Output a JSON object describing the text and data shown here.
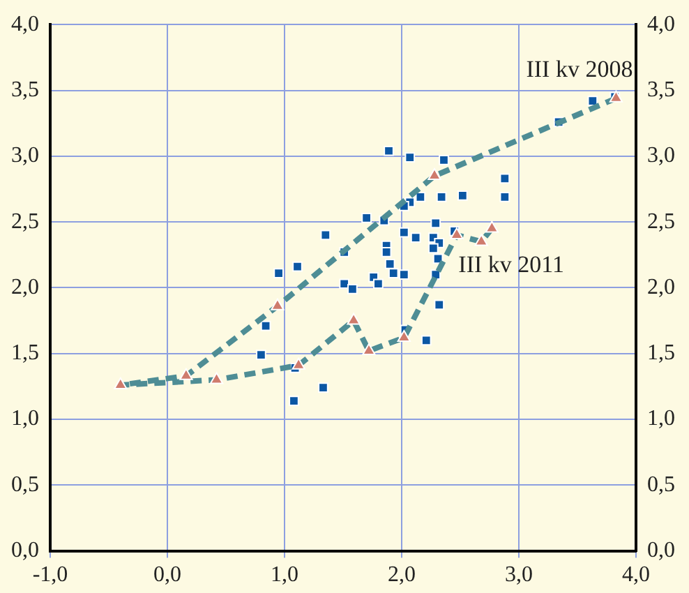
{
  "chart_data": {
    "type": "scatter",
    "series": [
      {
        "color": "#0b57a4",
        "marker": "square",
        "x": [
          1.89,
          2.07,
          2.36,
          2.88,
          2.88,
          2.52,
          2.34,
          2.16,
          2.07,
          2.02,
          1.7,
          1.85,
          2.29,
          2.45,
          2.02,
          2.12,
          2.27,
          2.32,
          2.27,
          1.87,
          1.87,
          1.51,
          1.35,
          2.31,
          1.9,
          1.11,
          0.95,
          1.93,
          2.02,
          2.29,
          1.76,
          1.8,
          1.51,
          1.58,
          2.32,
          0.84,
          2.03,
          2.21,
          0.8,
          1.09,
          1.33,
          1.08,
          3.34,
          3.63,
          3.82
        ],
        "values": [
          3.04,
          2.99,
          2.97,
          2.83,
          2.69,
          2.7,
          2.69,
          2.69,
          2.65,
          2.62,
          2.53,
          2.51,
          2.49,
          2.43,
          2.42,
          2.38,
          2.38,
          2.34,
          2.3,
          2.32,
          2.27,
          2.27,
          2.4,
          2.22,
          2.18,
          2.16,
          2.11,
          2.11,
          2.1,
          2.1,
          2.08,
          2.03,
          2.03,
          1.99,
          1.87,
          1.71,
          1.68,
          1.6,
          1.49,
          1.39,
          1.24,
          1.14,
          3.26,
          3.42,
          3.45
        ]
      },
      {
        "type": "line",
        "color": "#4e8d95",
        "marker": "triangle",
        "line_style": "dashed",
        "x": [
          3.83,
          2.28,
          0.94,
          0.16,
          -0.4,
          0.42,
          1.12,
          1.59,
          1.72,
          2.02,
          2.47,
          2.68,
          2.77
        ],
        "values": [
          3.44,
          2.85,
          1.86,
          1.33,
          1.26,
          1.3,
          1.41,
          1.75,
          1.52,
          1.62,
          2.4,
          2.35,
          2.45
        ]
      }
    ],
    "annotations": [
      {
        "text": "III kv 2008",
        "x": 3.83,
        "y": 3.44
      },
      {
        "text": "III kv 2011",
        "x": 2.77,
        "y": 2.45
      }
    ],
    "xlim": [
      -1,
      4
    ],
    "xticks": [
      {
        "value": -1,
        "label": "-1,0"
      },
      {
        "value": 0,
        "label": "0,0"
      },
      {
        "value": 1,
        "label": "1,0"
      },
      {
        "value": 2,
        "label": "2,0"
      },
      {
        "value": 3,
        "label": "3,0"
      },
      {
        "value": 4,
        "label": "4,0"
      }
    ],
    "ylim": [
      0,
      4
    ],
    "yticks": [
      {
        "value": 0,
        "label": "0,0"
      },
      {
        "value": 0.5,
        "label": "0,5"
      },
      {
        "value": 1,
        "label": "1,0"
      },
      {
        "value": 1.5,
        "label": "1,5"
      },
      {
        "value": 2,
        "label": "2,0"
      },
      {
        "value": 2.5,
        "label": "2,5"
      },
      {
        "value": 3,
        "label": "3,0"
      },
      {
        "value": 3.5,
        "label": "3,5"
      },
      {
        "value": 4,
        "label": "4,0"
      }
    ],
    "y2lim": [
      0,
      4
    ],
    "y2ticks": [
      {
        "value": 0,
        "label": "0,0"
      },
      {
        "value": 0.5,
        "label": "0,5"
      },
      {
        "value": 1,
        "label": "1,0"
      },
      {
        "value": 1.5,
        "label": "1,5"
      },
      {
        "value": 2,
        "label": "2,0"
      },
      {
        "value": 2.5,
        "label": "2,5"
      },
      {
        "value": 3,
        "label": "3,0"
      },
      {
        "value": 3.5,
        "label": "3,5"
      },
      {
        "value": 4,
        "label": "4,0"
      }
    ],
    "grid": true,
    "legend": false
  }
}
